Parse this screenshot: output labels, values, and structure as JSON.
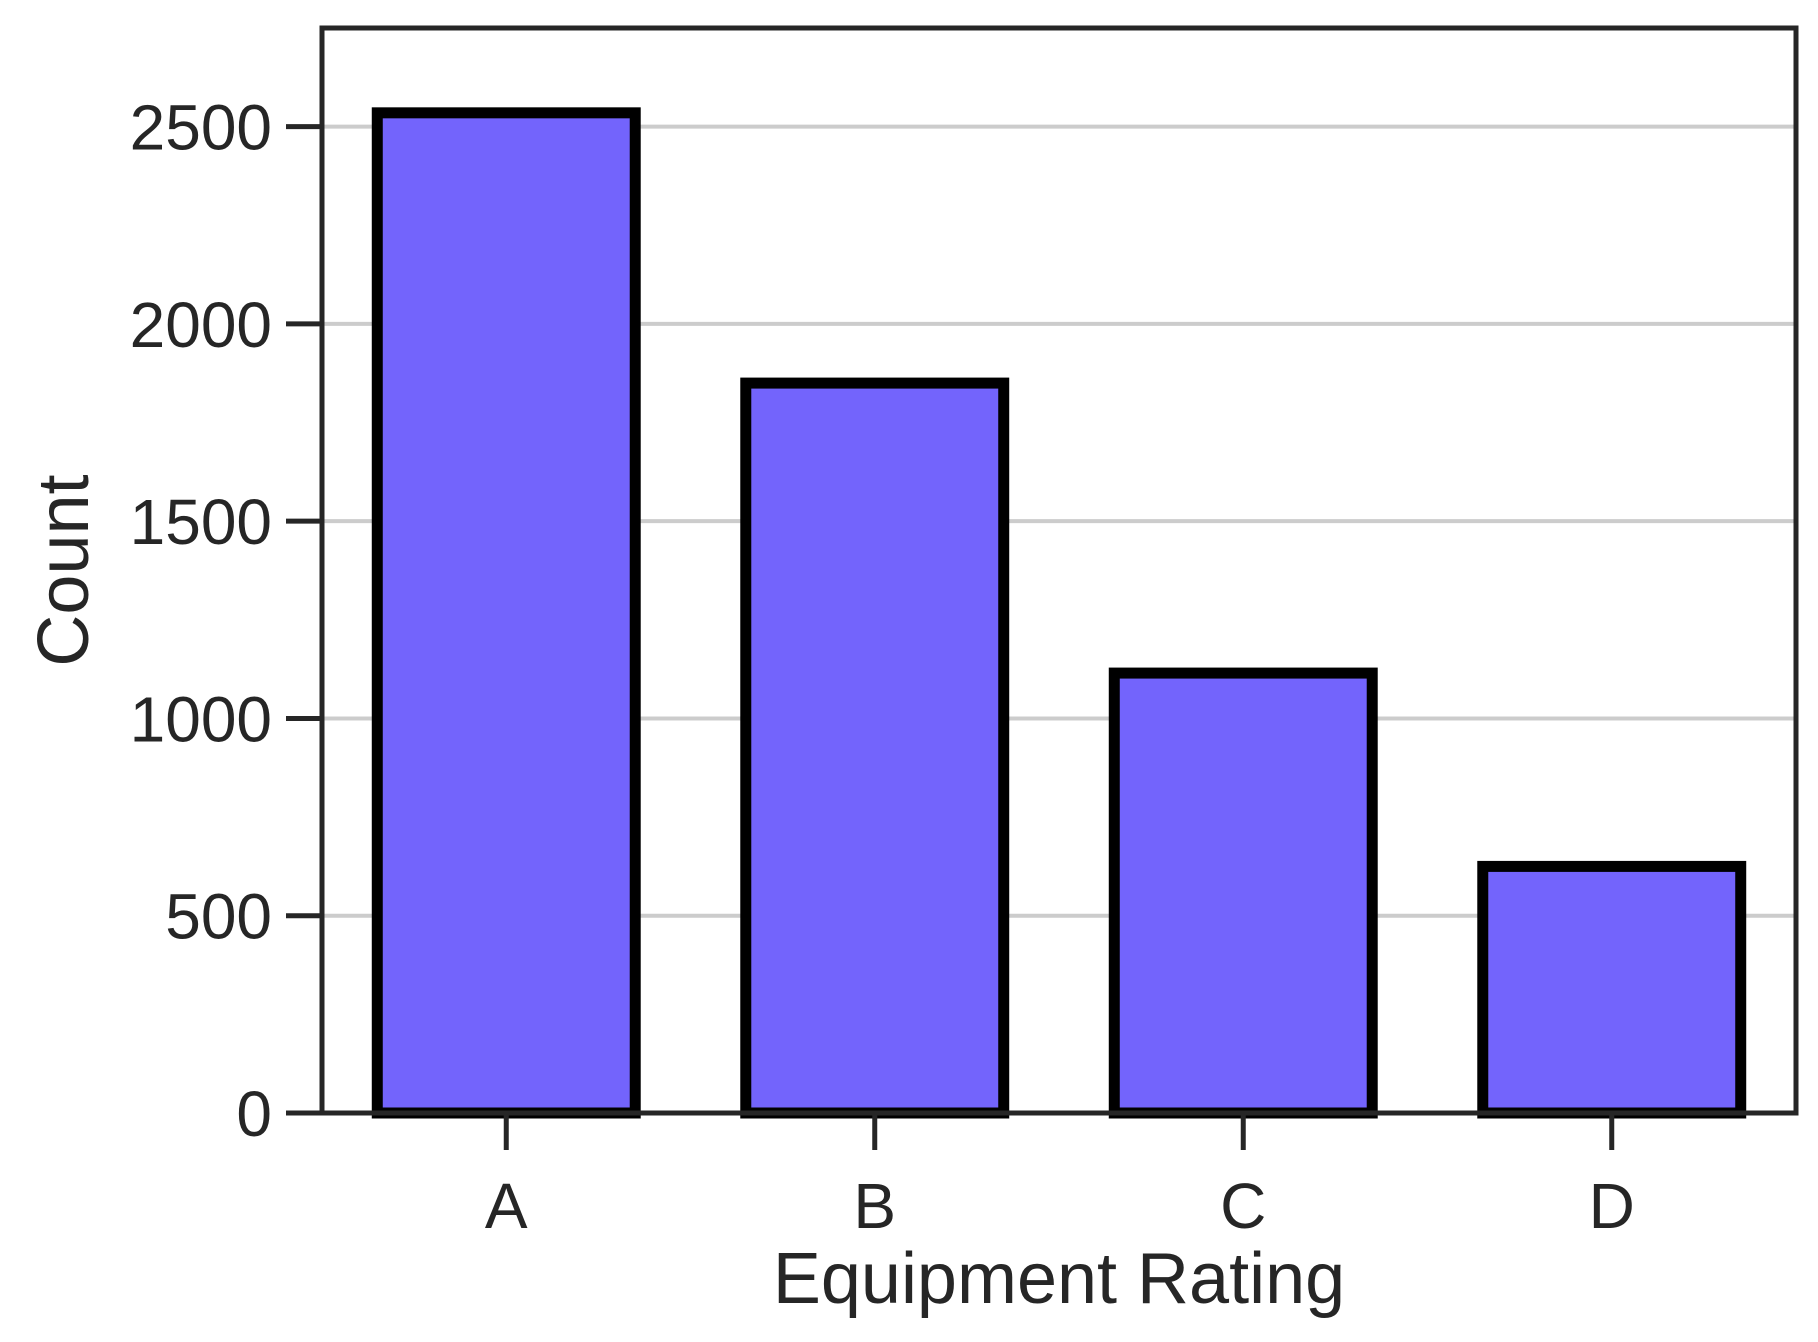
{
  "chart_data": {
    "type": "bar",
    "title": "",
    "xlabel": "Equipment Rating",
    "ylabel": "Count",
    "categories": [
      "A",
      "B",
      "C",
      "D"
    ],
    "values": [
      2535,
      1850,
      1115,
      625
    ],
    "ylim": [
      0,
      2750
    ],
    "yticks": [
      0,
      500,
      1000,
      1500,
      2000,
      2500
    ],
    "ytick_labels": [
      "0",
      "500",
      "1000",
      "1500",
      "2000",
      "2500"
    ],
    "grid": {
      "y": true,
      "x": false
    },
    "legend": "none",
    "colors": {
      "bar_fill": "#7364fc",
      "bar_edge": "#000000",
      "grid": "#cccccc",
      "axes": "#262626",
      "text": "#262626"
    }
  }
}
